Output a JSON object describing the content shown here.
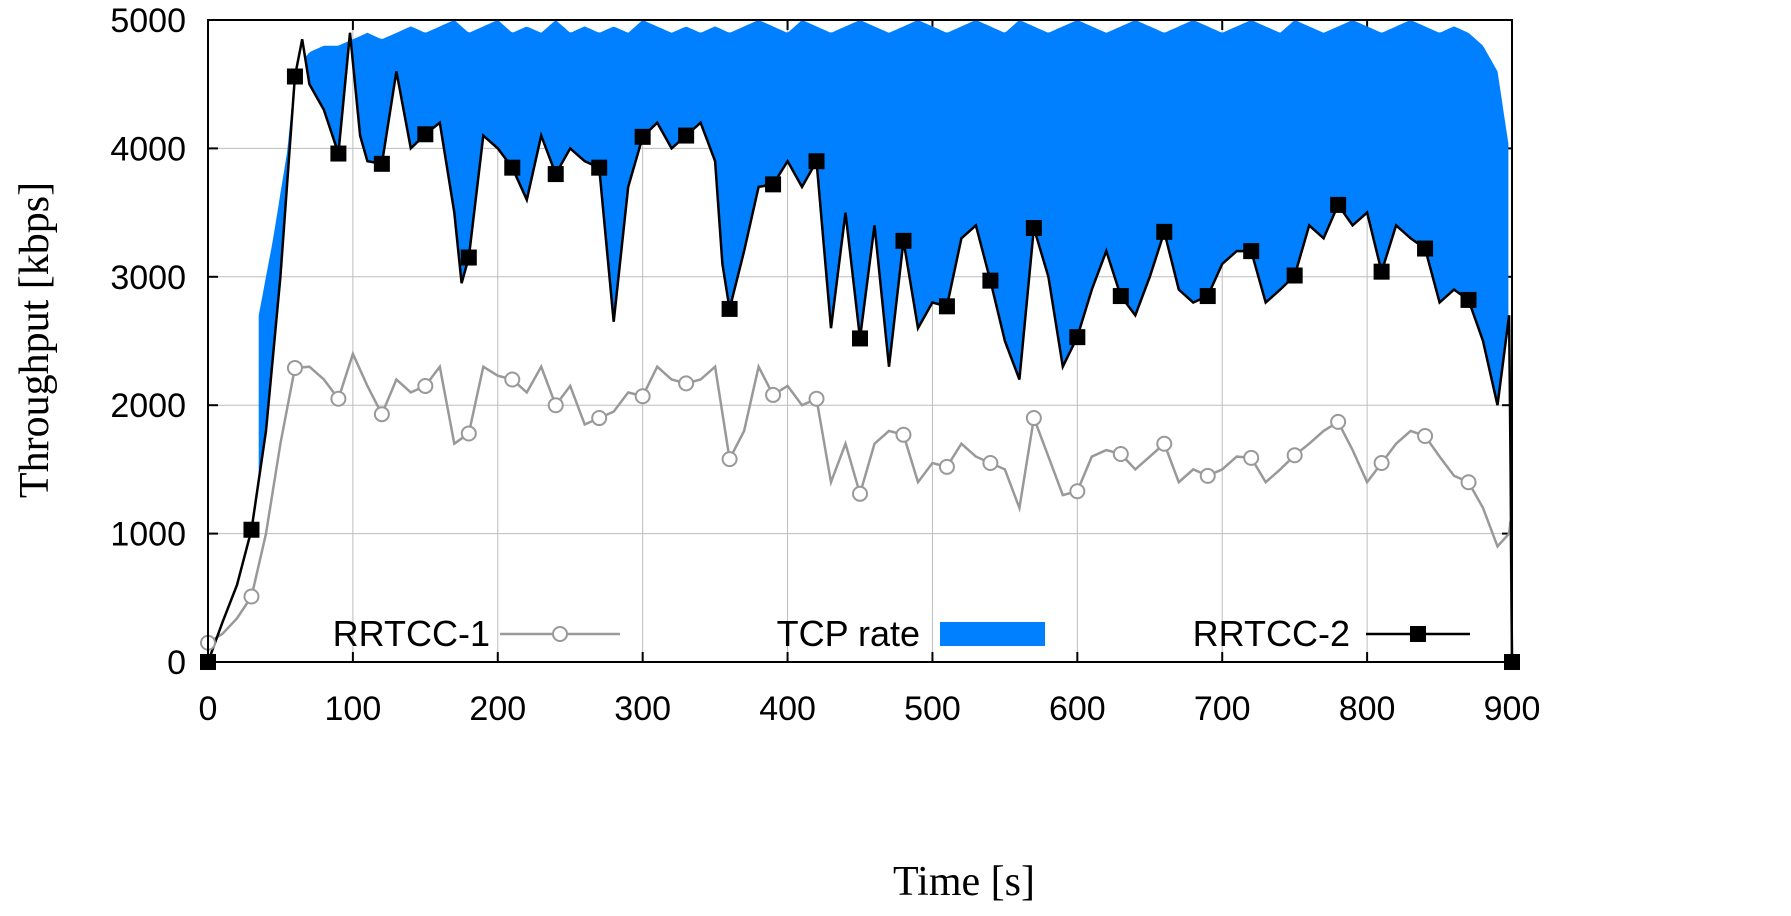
{
  "chart_data": {
    "type": "line",
    "xlabel": "Time [s]",
    "ylabel": "Throughput [kbps]",
    "xlim": [
      0,
      900
    ],
    "ylim": [
      0,
      5000
    ],
    "xticks": [
      0,
      100,
      200,
      300,
      400,
      500,
      600,
      700,
      800,
      900
    ],
    "yticks": [
      0,
      1000,
      2000,
      3000,
      4000,
      5000
    ],
    "grid": true,
    "legend_placement": "bottom",
    "series": [
      {
        "name": "RRTCC-1",
        "kind": "line",
        "color": "#999999",
        "marker": "open-circle",
        "x": [
          0,
          10,
          20,
          30,
          40,
          50,
          60,
          70,
          80,
          90,
          100,
          110,
          120,
          130,
          140,
          150,
          160,
          170,
          180,
          190,
          200,
          210,
          220,
          230,
          240,
          250,
          260,
          270,
          280,
          290,
          300,
          310,
          320,
          330,
          340,
          350,
          360,
          370,
          380,
          390,
          400,
          410,
          420,
          430,
          440,
          450,
          460,
          470,
          480,
          490,
          500,
          510,
          520,
          530,
          540,
          550,
          560,
          570,
          580,
          590,
          600,
          610,
          620,
          630,
          640,
          650,
          660,
          670,
          680,
          690,
          700,
          710,
          720,
          730,
          740,
          750,
          760,
          770,
          780,
          790,
          800,
          810,
          820,
          830,
          840,
          850,
          860,
          870,
          880,
          890,
          898,
          899,
          900
        ],
        "y": [
          150,
          220,
          340,
          510,
          1000,
          1700,
          2290,
          2300,
          2200,
          2050,
          2400,
          2150,
          1930,
          2200,
          2100,
          2150,
          2300,
          1700,
          1780,
          2300,
          2230,
          2200,
          2100,
          2300,
          2000,
          2150,
          1850,
          1900,
          1950,
          2100,
          2070,
          2300,
          2200,
          2170,
          2200,
          2300,
          1580,
          1800,
          2300,
          2080,
          2150,
          2000,
          2050,
          1400,
          1700,
          1310,
          1700,
          1800,
          1770,
          1400,
          1550,
          1520,
          1700,
          1600,
          1550,
          1500,
          1200,
          1900,
          1600,
          1300,
          1330,
          1600,
          1650,
          1620,
          1500,
          1600,
          1700,
          1400,
          1500,
          1450,
          1500,
          1600,
          1590,
          1400,
          1500,
          1610,
          1700,
          1800,
          1870,
          1650,
          1400,
          1550,
          1700,
          1800,
          1760,
          1600,
          1450,
          1400,
          1200,
          900,
          1000,
          1100,
          0
        ]
      },
      {
        "name": "TCP rate",
        "kind": "area",
        "color": "#0080ff",
        "x": [
          35,
          45,
          55,
          60,
          70,
          80,
          90,
          100,
          110,
          120,
          130,
          140,
          150,
          160,
          170,
          180,
          190,
          200,
          210,
          220,
          230,
          240,
          250,
          260,
          270,
          280,
          290,
          300,
          310,
          320,
          330,
          340,
          350,
          360,
          370,
          380,
          390,
          400,
          410,
          420,
          430,
          440,
          450,
          460,
          470,
          480,
          490,
          500,
          510,
          520,
          530,
          540,
          550,
          560,
          570,
          580,
          590,
          600,
          610,
          620,
          630,
          640,
          650,
          660,
          670,
          680,
          690,
          700,
          710,
          720,
          730,
          740,
          750,
          760,
          770,
          780,
          790,
          800,
          810,
          820,
          830,
          840,
          850,
          860,
          870,
          880,
          890,
          898
        ],
        "y": [
          2700,
          3300,
          4000,
          4600,
          4750,
          4800,
          4800,
          4850,
          4900,
          4850,
          4900,
          4950,
          4900,
          4950,
          5000,
          4900,
          4950,
          5000,
          4900,
          4950,
          4900,
          5000,
          4900,
          4950,
          4900,
          4950,
          4900,
          5000,
          4950,
          4900,
          4950,
          4900,
          4950,
          4900,
          4950,
          5000,
          4950,
          4900,
          5000,
          4950,
          4900,
          4950,
          5000,
          4950,
          4900,
          4950,
          5000,
          4950,
          4900,
          4950,
          5000,
          4950,
          4900,
          5000,
          4950,
          4900,
          4950,
          5000,
          4950,
          4900,
          4950,
          5000,
          4950,
          4900,
          4950,
          5000,
          4950,
          4900,
          4950,
          5000,
          4950,
          4900,
          5000,
          4950,
          4900,
          4950,
          5000,
          4950,
          4900,
          4950,
          5000,
          4950,
          4900,
          4950,
          4900,
          4800,
          4600,
          4000
        ]
      },
      {
        "name": "RRTCC-2",
        "kind": "line",
        "color": "#000000",
        "marker": "filled-square",
        "x": [
          0,
          10,
          20,
          30,
          40,
          50,
          60,
          65,
          70,
          80,
          90,
          98,
          105,
          110,
          120,
          130,
          140,
          150,
          160,
          170,
          175,
          180,
          190,
          200,
          210,
          220,
          230,
          240,
          250,
          260,
          270,
          280,
          290,
          300,
          310,
          320,
          330,
          340,
          350,
          355,
          360,
          370,
          380,
          390,
          400,
          410,
          420,
          430,
          440,
          450,
          460,
          470,
          480,
          490,
          500,
          510,
          520,
          530,
          540,
          550,
          560,
          570,
          580,
          590,
          600,
          610,
          620,
          630,
          640,
          650,
          660,
          670,
          680,
          690,
          700,
          710,
          720,
          730,
          740,
          750,
          760,
          770,
          780,
          790,
          800,
          810,
          820,
          830,
          840,
          850,
          860,
          870,
          880,
          890,
          898,
          899,
          900
        ],
        "y": [
          0,
          310,
          600,
          1030,
          1800,
          3000,
          4560,
          4850,
          4500,
          4300,
          3960,
          4900,
          4100,
          3900,
          3880,
          4600,
          4000,
          4110,
          4200,
          3500,
          2950,
          3150,
          4100,
          4000,
          3850,
          3600,
          4100,
          3800,
          4000,
          3900,
          3850,
          2650,
          3700,
          4090,
          4200,
          4000,
          4100,
          4200,
          3900,
          3100,
          2750,
          3200,
          3700,
          3720,
          3900,
          3700,
          3900,
          2600,
          3500,
          2520,
          3400,
          2300,
          3280,
          2600,
          2800,
          2770,
          3300,
          3400,
          2970,
          2500,
          2200,
          3380,
          3000,
          2300,
          2530,
          2900,
          3200,
          2850,
          2700,
          3000,
          3350,
          2900,
          2800,
          2850,
          3100,
          3200,
          3200,
          2800,
          2900,
          3010,
          3400,
          3300,
          3560,
          3400,
          3500,
          3040,
          3400,
          3300,
          3220,
          2800,
          2900,
          2820,
          2500,
          2000,
          2700,
          1500,
          0
        ]
      }
    ]
  }
}
